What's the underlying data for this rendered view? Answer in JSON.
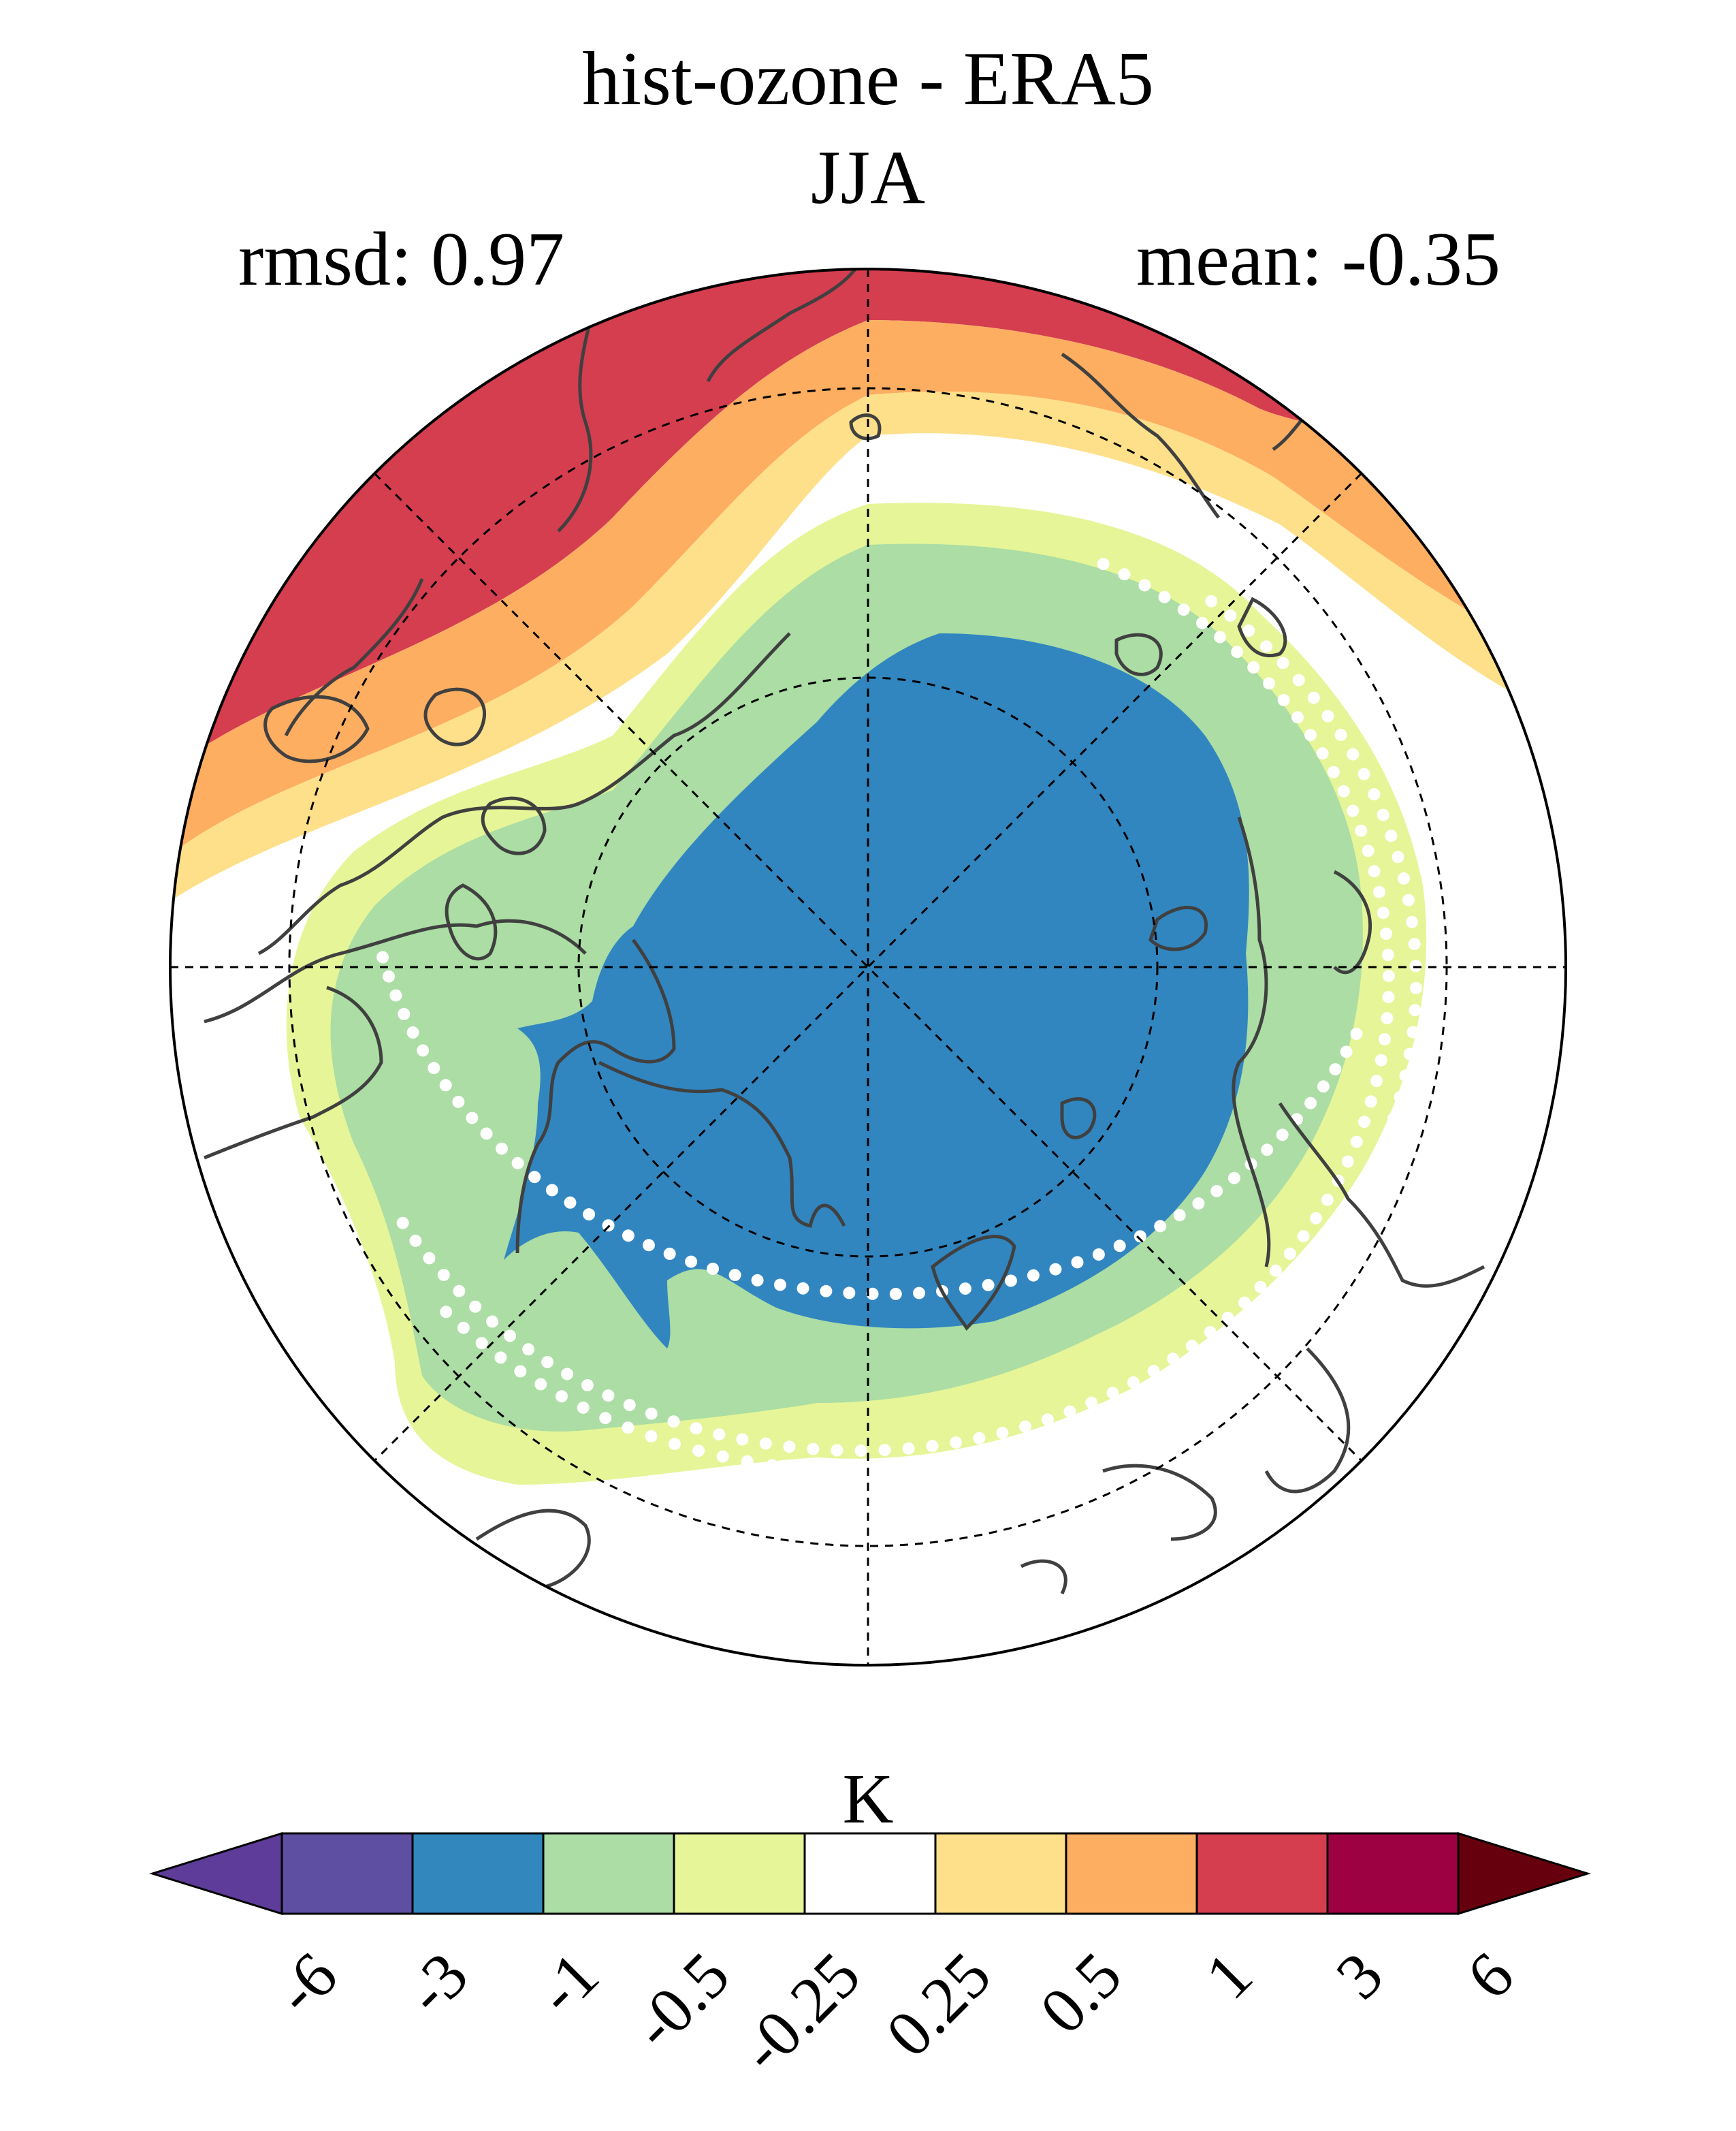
{
  "title": "hist-ozone - ERA5",
  "season": "JJA",
  "stats": {
    "rmsd_label": "rmsd: 0.97",
    "mean_label": "mean: -0.35"
  },
  "projection": "north-polar-stereographic",
  "regions": [
    {
      "name": "central-arctic",
      "value_band": "-3 to -1",
      "color": "#3186c0"
    },
    {
      "name": "subarctic-ring",
      "value_band": "-1 to -0.5",
      "color": "#abdda4"
    },
    {
      "name": "outer-ring",
      "value_band": "-0.5 to -0.25",
      "color": "#e6f598"
    },
    {
      "name": "midlatitude-band",
      "value_band": "-0.25 to 0.25",
      "color": "#ffffff"
    },
    {
      "name": "warm-band-1",
      "value_band": "0.25 to 0.5",
      "color": "#fee08b"
    },
    {
      "name": "warm-band-2",
      "value_band": "0.5 to 1",
      "color": "#fdae61"
    },
    {
      "name": "warm-band-3",
      "value_band": "1 to 3",
      "color": "#d53e4f"
    }
  ],
  "stippling": {
    "color": "#ffffff",
    "meaning": "hatching dots"
  },
  "colorbar": {
    "unit": "K",
    "ticks": [
      "-6",
      "-3",
      "-1",
      "-0.5",
      "-0.25",
      "0.25",
      "0.5",
      "1",
      "3",
      "6"
    ],
    "colors": [
      "#5e3c99",
      "#5e4fa2",
      "#3288bd",
      "#abdda4",
      "#e6f598",
      "#ffffff",
      "#fee08b",
      "#fdae61",
      "#d53e4f",
      "#9e0142",
      "#67000d"
    ]
  }
}
